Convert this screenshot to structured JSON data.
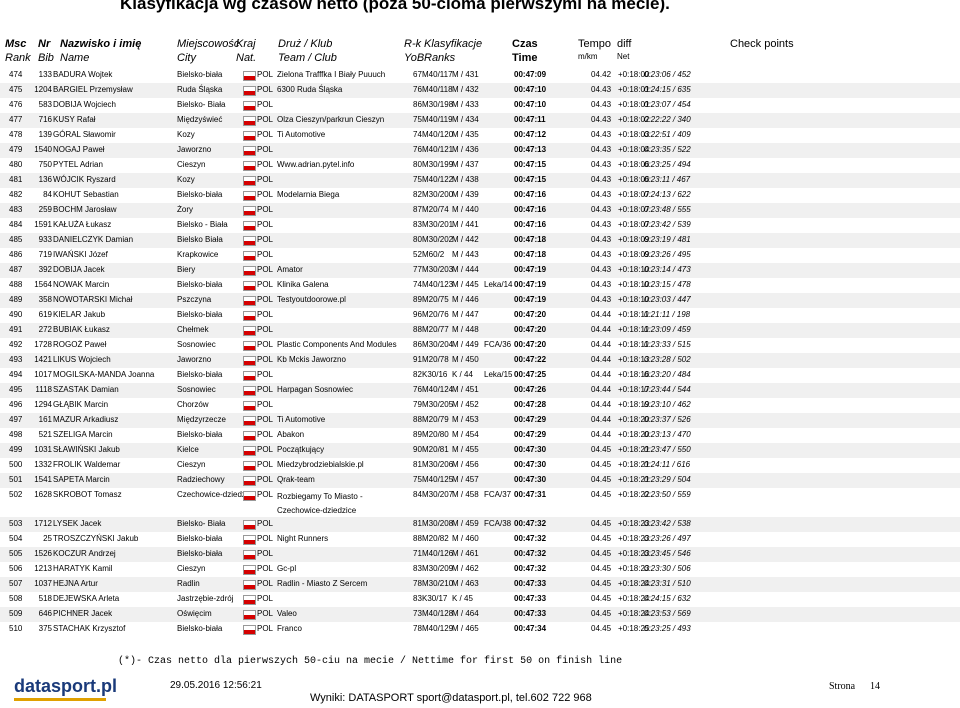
{
  "header": {
    "title": "Klasyfikacja wg czasów netto (poza 50-cioma pierwszymi na mecie).",
    "columns": [
      [
        "Msc",
        "Rank"
      ],
      [
        "Nr",
        "Bib"
      ],
      [
        "Nazwisko i imię",
        "Name"
      ],
      [
        "Miejscowość",
        "City"
      ],
      [
        "Kraj",
        "Nat."
      ],
      [
        "Druż / Klub",
        "Team / Club"
      ],
      [
        "R-k",
        "YoB"
      ],
      [
        "Klasyfikacje",
        "Ranks"
      ],
      [
        "Czas",
        "Time"
      ],
      [
        "Tempo",
        "m/km"
      ],
      [
        "diff",
        "Net"
      ],
      [
        "Check points",
        ""
      ]
    ]
  },
  "table": {
    "rows": [
      [
        "474",
        "133",
        "BADURA Wojtek",
        "Bielsko-biała",
        "POL",
        "Zielona Trafffka I Biały Puuuch",
        "67",
        "M40/117",
        "M / 431",
        "",
        "00:47:09",
        "04.42",
        "+0:18:00",
        "0:23:06 / 452"
      ],
      [
        "475",
        "1204",
        "BARGIEL Przemysław",
        "Ruda Śląska",
        "POL",
        "6300 Ruda Śląska",
        "76",
        "M40/118",
        "M / 432",
        "",
        "00:47:10",
        "04.43",
        "+0:18:01",
        "0:24:15 / 635"
      ],
      [
        "476",
        "583",
        "DOBIJA Wojciech",
        "Bielsko- Biała",
        "POL",
        "",
        "86",
        "M30/198",
        "M / 433",
        "",
        "00:47:10",
        "04.43",
        "+0:18:01",
        "0:23:07 / 454"
      ],
      [
        "477",
        "716",
        "KUSY Rafał",
        "Międzyświeć",
        "POL",
        "Olza Cieszyn/parkrun Cieszyn",
        "75",
        "M40/119",
        "M / 434",
        "",
        "00:47:11",
        "04.43",
        "+0:18:02",
        "0:22:22 / 340"
      ],
      [
        "478",
        "139",
        "GÓRAL Sławomir",
        "Kozy",
        "POL",
        "Ti Automotive",
        "74",
        "M40/120",
        "M / 435",
        "",
        "00:47:12",
        "04.43",
        "+0:18:03",
        "0:22:51 / 409"
      ],
      [
        "479",
        "1540",
        "NOGAJ Paweł",
        "Jaworzno",
        "POL",
        "",
        "76",
        "M40/121",
        "M / 436",
        "",
        "00:47:13",
        "04.43",
        "+0:18:04",
        "0:23:35 / 522"
      ],
      [
        "480",
        "750",
        "PYTEL Adrian",
        "Cieszyn",
        "POL",
        "Www.adrian.pytel.info",
        "80",
        "M30/199",
        "M / 437",
        "",
        "00:47:15",
        "04.43",
        "+0:18:06",
        "0:23:25 / 494"
      ],
      [
        "481",
        "136",
        "WÓJCIK Ryszard",
        "Kozy",
        "POL",
        "",
        "75",
        "M40/122",
        "M / 438",
        "",
        "00:47:15",
        "04.43",
        "+0:18:06",
        "0:23:11 / 467"
      ],
      [
        "482",
        "84",
        "KOHUT Sebastian",
        "Bielsko-biała",
        "POL",
        "Modelarnia Biega",
        "82",
        "M30/200",
        "M / 439",
        "",
        "00:47:16",
        "04.43",
        "+0:18:07",
        "0:24:13 / 622"
      ],
      [
        "483",
        "259",
        "BOCHM Jarosław",
        "Żory",
        "POL",
        "",
        "87",
        "M20/74",
        "M / 440",
        "",
        "00:47:16",
        "04.43",
        "+0:18:07",
        "0:23:48 / 555"
      ],
      [
        "484",
        "1591",
        "KAŁUŻA Łukasz",
        "Bielsko - Biała",
        "POL",
        "",
        "83",
        "M30/201",
        "M / 441",
        "",
        "00:47:16",
        "04.43",
        "+0:18:07",
        "0:23:42 / 539"
      ],
      [
        "485",
        "933",
        "DANIELCZYK Damian",
        "Bielsko Biała",
        "POL",
        "",
        "80",
        "M30/202",
        "M / 442",
        "",
        "00:47:18",
        "04.43",
        "+0:18:09",
        "0:23:19 / 481"
      ],
      [
        "486",
        "719",
        "IWAŃSKI Józef",
        "Krapkowice",
        "POL",
        "",
        "52",
        "M60/2",
        "M / 443",
        "",
        "00:47:18",
        "04.43",
        "+0:18:09",
        "0:23:26 / 495"
      ],
      [
        "487",
        "392",
        "DOBIJA Jacek",
        "Biery",
        "POL",
        "Amator",
        "77",
        "M30/203",
        "M / 444",
        "",
        "00:47:19",
        "04.43",
        "+0:18:10",
        "0:23:14 / 473"
      ],
      [
        "488",
        "1564",
        "NOWAK Marcin",
        "Bielsko-biała",
        "POL",
        "Klinika Galena",
        "74",
        "M40/123",
        "M / 445",
        "Leka/14",
        "00:47:19",
        "04.43",
        "+0:18:10",
        "0:23:15 / 478"
      ],
      [
        "489",
        "358",
        "NOWOTARSKI Michał",
        "Pszczyna",
        "POL",
        "Testyoutdoorowe.pl",
        "89",
        "M20/75",
        "M / 446",
        "",
        "00:47:19",
        "04.43",
        "+0:18:10",
        "0:23:03 / 447"
      ],
      [
        "490",
        "619",
        "KIELAR Jakub",
        "Bielsko-biała",
        "POL",
        "",
        "96",
        "M20/76",
        "M / 447",
        "",
        "00:47:20",
        "04.44",
        "+0:18:11",
        "0:21:11 / 198"
      ],
      [
        "491",
        "272",
        "BUBIAK Łukasz",
        "Chełmek",
        "POL",
        "",
        "88",
        "M20/77",
        "M / 448",
        "",
        "00:47:20",
        "04.44",
        "+0:18:11",
        "0:23:09 / 459"
      ],
      [
        "492",
        "1728",
        "ROGOŻ Paweł",
        "Sosnowiec",
        "POL",
        "Plastic Components And Modules",
        "86",
        "M30/204",
        "M / 449",
        "FCA/36",
        "00:47:20",
        "04.44",
        "+0:18:11",
        "0:23:33 / 515"
      ],
      [
        "493",
        "1421",
        "LIKUS Wojciech",
        "Jaworzno",
        "POL",
        "Kb Mckis Jaworzno",
        "91",
        "M20/78",
        "M / 450",
        "",
        "00:47:22",
        "04.44",
        "+0:18:13",
        "0:23:28 / 502"
      ],
      [
        "494",
        "1017",
        "MOGILSKA-MANDA Joanna",
        "Bielsko-biała",
        "POL",
        "",
        "82",
        "K30/16",
        "K / 44",
        "Leka/15",
        "00:47:25",
        "04.44",
        "+0:18:16",
        "0:23:20 / 484"
      ],
      [
        "495",
        "1118",
        "SZASTAK Damian",
        "Sosnowiec",
        "POL",
        "Harpagan Sosnowiec",
        "76",
        "M40/124",
        "M / 451",
        "",
        "00:47:26",
        "04.44",
        "+0:18:17",
        "0:23:44 / 544"
      ],
      [
        "496",
        "1294",
        "GŁĄBIK Marcin",
        "Chorzów",
        "POL",
        "",
        "79",
        "M30/205",
        "M / 452",
        "",
        "00:47:28",
        "04.44",
        "+0:18:19",
        "0:23:10 / 462"
      ],
      [
        "497",
        "161",
        "MAZUR Arkadiusz",
        "Międzyrzecze",
        "POL",
        "Ti Automotive",
        "88",
        "M20/79",
        "M / 453",
        "",
        "00:47:29",
        "04.44",
        "+0:18:20",
        "0:23:37 / 526"
      ],
      [
        "498",
        "521",
        "SZELIGA Marcin",
        "Bielsko-biała",
        "POL",
        "Abakon",
        "89",
        "M20/80",
        "M / 454",
        "",
        "00:47:29",
        "04.44",
        "+0:18:20",
        "0:23:13 / 470"
      ],
      [
        "499",
        "1031",
        "SŁAWIŃSKI Jakub",
        "Kielce",
        "POL",
        "Początkujący",
        "90",
        "M20/81",
        "M / 455",
        "",
        "00:47:30",
        "04.45",
        "+0:18:21",
        "0:23:47 / 550"
      ],
      [
        "500",
        "1332",
        "FROLIK Waldemar",
        "Cieszyn",
        "POL",
        "Miedzybrodziebialskie.pl",
        "81",
        "M30/206",
        "M / 456",
        "",
        "00:47:30",
        "04.45",
        "+0:18:21",
        "0:24:11 / 616"
      ],
      [
        "501",
        "1541",
        "SAPETA Marcin",
        "Radziechowy",
        "POL",
        "Qrak-team",
        "75",
        "M40/125",
        "M / 457",
        "",
        "00:47:30",
        "04.45",
        "+0:18:21",
        "0:23:29 / 504"
      ],
      [
        "502",
        "1628",
        "SKROBOT Tomasz",
        "Czechowice-dziedz",
        "POL",
        "Rozbiegamy To Miasto - Czechowice-dziedzice",
        "84",
        "M30/207",
        "M / 458",
        "FCA/37",
        "00:47:31",
        "04.45",
        "+0:18:22",
        "0:23:50 / 559"
      ],
      [
        "503",
        "1712",
        "LYSEK Jacek",
        "Bielsko- Biała",
        "POL",
        "",
        "81",
        "M30/208",
        "M / 459",
        "FCA/38",
        "00:47:32",
        "04.45",
        "+0:18:23",
        "0:23:42 / 538"
      ],
      [
        "504",
        "25",
        "TROSZCZYŃSKI Jakub",
        "Bielsko-biała",
        "POL",
        "Night Runners",
        "88",
        "M20/82",
        "M / 460",
        "",
        "00:47:32",
        "04.45",
        "+0:18:23",
        "0:23:26 / 497"
      ],
      [
        "505",
        "1526",
        "KOCZUR Andrzej",
        "Bielsko-biała",
        "POL",
        "",
        "71",
        "M40/126",
        "M / 461",
        "",
        "00:47:32",
        "04.45",
        "+0:18:23",
        "0:23:45 / 546"
      ],
      [
        "506",
        "1213",
        "HARATYK Kamil",
        "Cieszyn",
        "POL",
        "Gc-pl",
        "83",
        "M30/209",
        "M / 462",
        "",
        "00:47:32",
        "04.45",
        "+0:18:23",
        "0:23:30 / 506"
      ],
      [
        "507",
        "1037",
        "HEJNA Artur",
        "Radlin",
        "POL",
        "Radlin - Miasto Z Sercem",
        "78",
        "M30/210",
        "M / 463",
        "",
        "00:47:33",
        "04.45",
        "+0:18:24",
        "0:23:31 / 510"
      ],
      [
        "508",
        "518",
        "DEJEWSKA Arleta",
        "Jastrzębie-zdrój",
        "POL",
        "",
        "83",
        "K30/17",
        "K / 45",
        "",
        "00:47:33",
        "04.45",
        "+0:18:24",
        "0:24:15 / 632"
      ],
      [
        "509",
        "646",
        "PICHNER Jacek",
        "Oświęcim",
        "POL",
        "Valeo",
        "73",
        "M40/128",
        "M / 464",
        "",
        "00:47:33",
        "04.45",
        "+0:18:24",
        "0:23:53 / 569"
      ],
      [
        "510",
        "375",
        "STACHAK Krzysztof",
        "Bielsko-biała",
        "POL",
        "Franco",
        "78",
        "M40/129",
        "M / 465",
        "",
        "00:47:34",
        "04.45",
        "+0:18:25",
        "0:23:25 / 493"
      ]
    ]
  },
  "footer": {
    "note": "(*)- Czas netto dla pierwszych 50-ciu na mecie / Nettime for first 50 on finish line",
    "logo": "datasport.pl",
    "date": "29.05.2016 12:56:21",
    "contact": "Wyniki: DATASPORT sport@datasport.pl, tel.602 722 968",
    "page_label": "Strona",
    "page": "14"
  }
}
